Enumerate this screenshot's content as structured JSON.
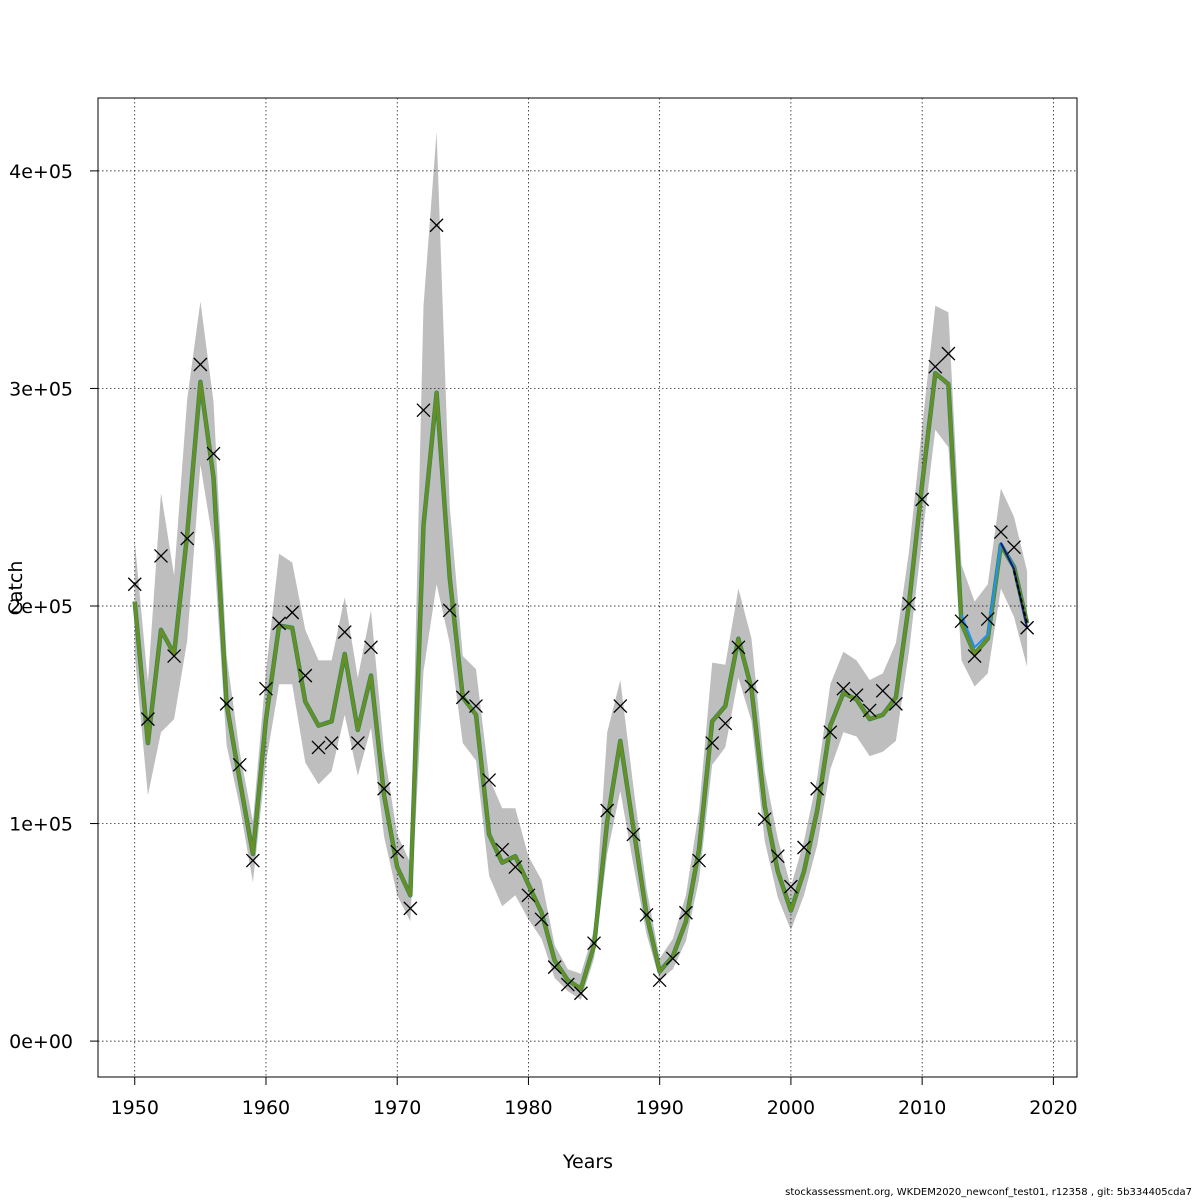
{
  "chart_data": {
    "type": "line",
    "xlabel": "Years",
    "ylabel": "Catch",
    "xlim": [
      1947.2,
      2021.8
    ],
    "ylim": [
      -16500,
      433500
    ],
    "x_ticks": [
      1950,
      1960,
      1970,
      1980,
      1990,
      2000,
      2010,
      2020
    ],
    "x_tick_labels": [
      "1950",
      "1960",
      "1970",
      "1980",
      "1990",
      "2000",
      "2010",
      "2020"
    ],
    "y_ticks": [
      0,
      100000,
      200000,
      300000,
      400000
    ],
    "y_tick_labels": [
      "0e+00",
      "1e+05",
      "2e+05",
      "3e+05",
      "4e+05"
    ],
    "grid": true,
    "colors": {
      "band": "#bebebe",
      "fit": "#6b8e23",
      "fit_shadow": "#2e8b57",
      "retro_1": "#1e90ff",
      "retro_2": "#191970",
      "retro_3": "#000000",
      "observed": "#000000"
    },
    "observed": {
      "x": [
        1950,
        1951,
        1952,
        1953,
        1954,
        1955,
        1956,
        1957,
        1958,
        1959,
        1960,
        1961,
        1962,
        1963,
        1964,
        1965,
        1966,
        1967,
        1968,
        1969,
        1970,
        1971,
        1972,
        1973,
        1974,
        1975,
        1976,
        1977,
        1978,
        1979,
        1980,
        1981,
        1982,
        1983,
        1984,
        1985,
        1986,
        1987,
        1988,
        1989,
        1990,
        1991,
        1992,
        1993,
        1994,
        1995,
        1996,
        1997,
        1998,
        1999,
        2000,
        2001,
        2002,
        2003,
        2004,
        2005,
        2006,
        2007,
        2008,
        2009,
        2010,
        2011,
        2012,
        2013,
        2014,
        2015,
        2016,
        2017,
        2018
      ],
      "y": [
        210000,
        148000,
        223000,
        177000,
        231000,
        311000,
        270000,
        155000,
        127000,
        83000,
        162000,
        192000,
        197000,
        168000,
        135000,
        137000,
        188000,
        137000,
        181000,
        116000,
        87000,
        61000,
        290000,
        375000,
        198000,
        158000,
        154000,
        120000,
        88000,
        80000,
        67000,
        56000,
        34000,
        26000,
        22000,
        45000,
        106000,
        154000,
        95000,
        58000,
        28000,
        38000,
        59000,
        83000,
        137000,
        146000,
        181000,
        163000,
        102000,
        85000,
        71000,
        89000,
        116000,
        142000,
        162000,
        159000,
        152000,
        161000,
        155000,
        201000,
        249000,
        310000,
        316000,
        193000,
        177000,
        194000,
        234000,
        227000,
        190000
      ]
    },
    "series": [
      {
        "name": "",
        "x": [
          1950,
          1951,
          1952,
          1953,
          1954,
          1955,
          1956,
          1957,
          1958,
          1959,
          1960,
          1961,
          1962,
          1963,
          1964,
          1965,
          1966,
          1967,
          1968,
          1969,
          1970,
          1971,
          1972,
          1973,
          1974,
          1975,
          1976,
          1977,
          1978,
          1979,
          1980,
          1981,
          1982,
          1983,
          1984,
          1985,
          1986,
          1987,
          1988,
          1989,
          1990,
          1991,
          1992,
          1993,
          1994,
          1995,
          1996,
          1997,
          1998,
          1999,
          2000,
          2001,
          2002,
          2003,
          2004,
          2005,
          2006,
          2007,
          2008,
          2009,
          2010,
          2011,
          2012,
          2013,
          2014,
          2015,
          2016,
          2017,
          2018
        ],
        "y": [
          202000,
          137000,
          189000,
          178000,
          233000,
          303000,
          259000,
          155000,
          120000,
          86000,
          148000,
          191000,
          190000,
          156000,
          145000,
          147000,
          178000,
          143000,
          168000,
          113000,
          80000,
          67000,
          237000,
          298000,
          213000,
          158000,
          150000,
          95000,
          82000,
          85000,
          72000,
          59000,
          37000,
          28000,
          24000,
          44000,
          101000,
          138000,
          98000,
          58000,
          32000,
          39000,
          55000,
          88000,
          147000,
          154000,
          185000,
          162000,
          108000,
          78000,
          60000,
          78000,
          106000,
          145000,
          160000,
          157000,
          148000,
          150000,
          158000,
          201000,
          256000,
          307000,
          302000,
          192000,
          178000,
          185000,
          228000,
          218000,
          192000
        ],
        "lower": [
          178000,
          113000,
          142000,
          148000,
          184000,
          265000,
          228000,
          136000,
          108000,
          73000,
          128000,
          164000,
          164000,
          128000,
          118000,
          124000,
          150000,
          122000,
          144000,
          94000,
          67000,
          55000,
          170000,
          210000,
          183000,
          137000,
          129000,
          76000,
          62000,
          67000,
          56000,
          47000,
          29000,
          23000,
          19000,
          38000,
          86000,
          115000,
          81000,
          49000,
          28000,
          33000,
          46000,
          74000,
          127000,
          135000,
          167000,
          147000,
          92000,
          66000,
          51000,
          67000,
          90000,
          125000,
          142000,
          140000,
          131000,
          133000,
          138000,
          179000,
          231000,
          281000,
          273000,
          175000,
          163000,
          169000,
          208000,
          195000,
          172000
        ],
        "upper": [
          230000,
          165000,
          252000,
          214000,
          295000,
          340000,
          294000,
          177000,
          133000,
          101000,
          170000,
          224000,
          220000,
          189000,
          175000,
          175000,
          204000,
          167000,
          198000,
          133000,
          95000,
          82000,
          338000,
          418000,
          246000,
          177000,
          171000,
          121000,
          107000,
          107000,
          85000,
          74000,
          44000,
          33000,
          31000,
          51000,
          142000,
          166000,
          117000,
          70000,
          38000,
          47000,
          67000,
          106000,
          174000,
          173000,
          208000,
          185000,
          124000,
          93000,
          71000,
          92000,
          121000,
          164000,
          179000,
          175000,
          166000,
          169000,
          183000,
          225000,
          282000,
          338000,
          335000,
          219000,
          202000,
          210000,
          254000,
          241000,
          216000
        ]
      }
    ],
    "retro": [
      {
        "name": "",
        "x": [
          2013,
          2014,
          2015,
          2016,
          2017
        ],
        "y": [
          196000,
          181000,
          187000,
          229000,
          218000
        ]
      },
      {
        "name": "",
        "x": [
          2016,
          2017,
          2018
        ],
        "y": [
          229000,
          217000,
          190000
        ]
      },
      {
        "name": "",
        "x": [
          2017,
          2018
        ],
        "y": [
          216000,
          192000
        ]
      }
    ]
  },
  "footer": "stockassessment.org, WKDEM2020_newconf_test01, r12358 , git: 5b334405cda7"
}
